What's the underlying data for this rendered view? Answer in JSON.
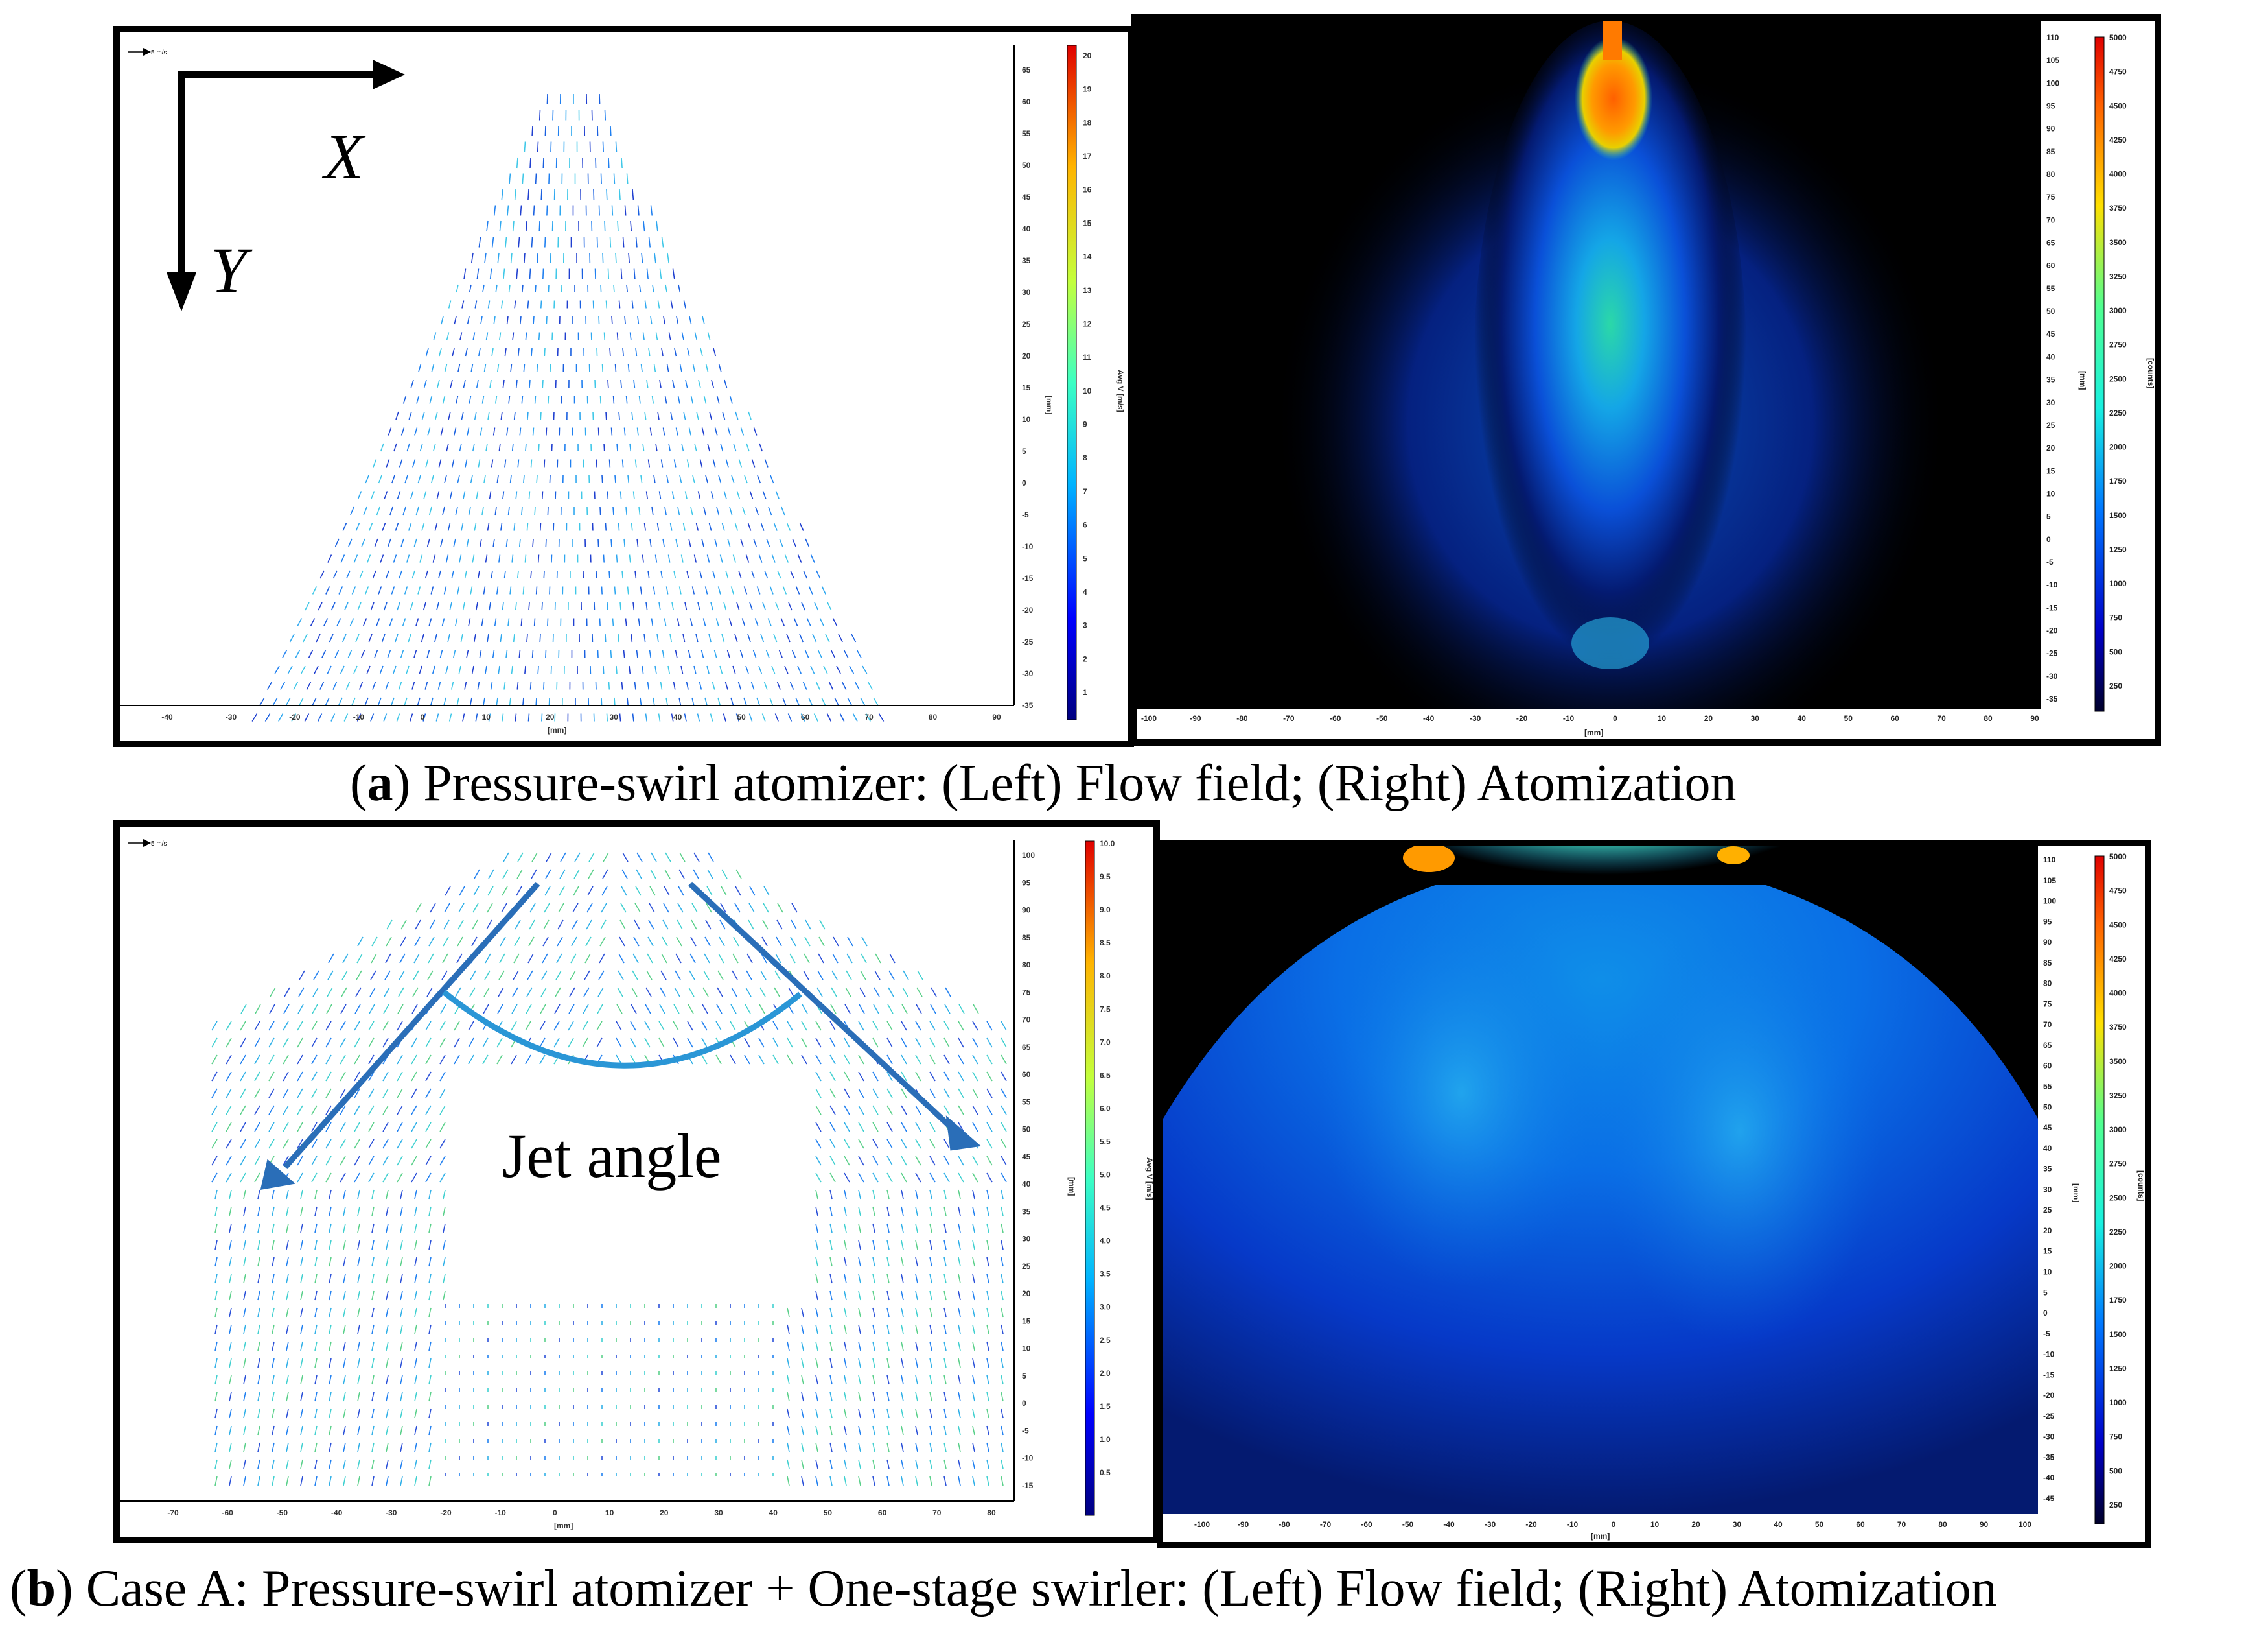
{
  "figure": {
    "caption_a": {
      "label": "a",
      "text": ") Pressure-swirl atomizer: (Left) Flow field; (Right) Atomization"
    },
    "caption_b": {
      "label": "b",
      "text": ") Case A: Pressure-swirl atomizer + One-stage swirler: (Left) Flow field; (Right) Atomization"
    }
  },
  "panel_a_left": {
    "scale_ref": "5 m/s",
    "axis_x_label": "X",
    "axis_y_label": "Y",
    "x_ticks": [
      "-40",
      "-30",
      "-20",
      "-10",
      "0",
      "10",
      "20",
      "30",
      "40",
      "50",
      "60",
      "70",
      "80",
      "90"
    ],
    "y_ticks": [
      "65",
      "60",
      "55",
      "50",
      "45",
      "40",
      "35",
      "30",
      "25",
      "20",
      "15",
      "10",
      "5",
      "0",
      "-5",
      "-10",
      "-15",
      "-20",
      "-25",
      "-30",
      "-35"
    ],
    "x_unit": "[mm]",
    "y_unit": "[mm]",
    "colorbar_label": "Avg V [m/s]",
    "colorbar_ticks": [
      "20",
      "19",
      "18",
      "17",
      "16",
      "15",
      "14",
      "13",
      "12",
      "11",
      "10",
      "9",
      "8",
      "7",
      "6",
      "5",
      "4",
      "3",
      "2",
      "1"
    ]
  },
  "panel_a_right": {
    "x_ticks": [
      "-100",
      "-90",
      "-80",
      "-70",
      "-60",
      "-50",
      "-40",
      "-30",
      "-20",
      "-10",
      "0",
      "10",
      "20",
      "30",
      "40",
      "50",
      "60",
      "70",
      "80",
      "90"
    ],
    "y_ticks": [
      "110",
      "105",
      "100",
      "95",
      "90",
      "85",
      "80",
      "75",
      "70",
      "65",
      "60",
      "55",
      "50",
      "45",
      "40",
      "35",
      "30",
      "25",
      "20",
      "15",
      "10",
      "5",
      "0",
      "-5",
      "-10",
      "-15",
      "-20",
      "-25",
      "-30",
      "-35"
    ],
    "x_unit": "[mm]",
    "y_unit": "[mm]",
    "colorbar_label": "[counts]",
    "colorbar_ticks": [
      "5000",
      "4750",
      "4500",
      "4250",
      "4000",
      "3750",
      "3500",
      "3250",
      "3000",
      "2750",
      "2500",
      "2250",
      "2000",
      "1750",
      "1500",
      "1250",
      "1000",
      "750",
      "500",
      "250"
    ]
  },
  "panel_b_left": {
    "scale_ref": "5 m/s",
    "annotation": "Jet angle",
    "x_ticks": [
      "-70",
      "-60",
      "-50",
      "-40",
      "-30",
      "-20",
      "-10",
      "0",
      "10",
      "20",
      "30",
      "40",
      "50",
      "60",
      "70",
      "80"
    ],
    "y_ticks": [
      "100",
      "95",
      "90",
      "85",
      "80",
      "75",
      "70",
      "65",
      "60",
      "55",
      "50",
      "45",
      "40",
      "35",
      "30",
      "25",
      "20",
      "15",
      "10",
      "5",
      "0",
      "-5",
      "-10",
      "-15"
    ],
    "x_unit": "[mm]",
    "y_unit": "[mm]",
    "colorbar_label": "Avg V [m/s]",
    "colorbar_ticks": [
      "10.0",
      "9.5",
      "9.0",
      "8.5",
      "8.0",
      "7.5",
      "7.0",
      "6.5",
      "6.0",
      "5.5",
      "5.0",
      "4.5",
      "4.0",
      "3.5",
      "3.0",
      "2.5",
      "2.0",
      "1.5",
      "1.0",
      "0.5"
    ]
  },
  "panel_b_right": {
    "x_ticks": [
      "-100",
      "-90",
      "-80",
      "-70",
      "-60",
      "-50",
      "-40",
      "-30",
      "-20",
      "-10",
      "0",
      "10",
      "20",
      "30",
      "40",
      "50",
      "60",
      "70",
      "80",
      "90",
      "100"
    ],
    "y_ticks": [
      "110",
      "105",
      "100",
      "95",
      "90",
      "85",
      "80",
      "75",
      "70",
      "65",
      "60",
      "55",
      "50",
      "45",
      "40",
      "35",
      "30",
      "25",
      "20",
      "15",
      "10",
      "5",
      "0",
      "-5",
      "-10",
      "-15",
      "-20",
      "-25",
      "-30",
      "-35",
      "-40",
      "-45"
    ],
    "x_unit": "[mm]",
    "y_unit": "[mm]",
    "colorbar_label": "[counts]",
    "colorbar_ticks": [
      "5000",
      "4750",
      "4500",
      "4250",
      "4000",
      "3750",
      "3500",
      "3250",
      "3000",
      "2750",
      "2500",
      "2250",
      "2000",
      "1750",
      "1500",
      "1250",
      "1000",
      "750",
      "500",
      "250"
    ]
  }
}
